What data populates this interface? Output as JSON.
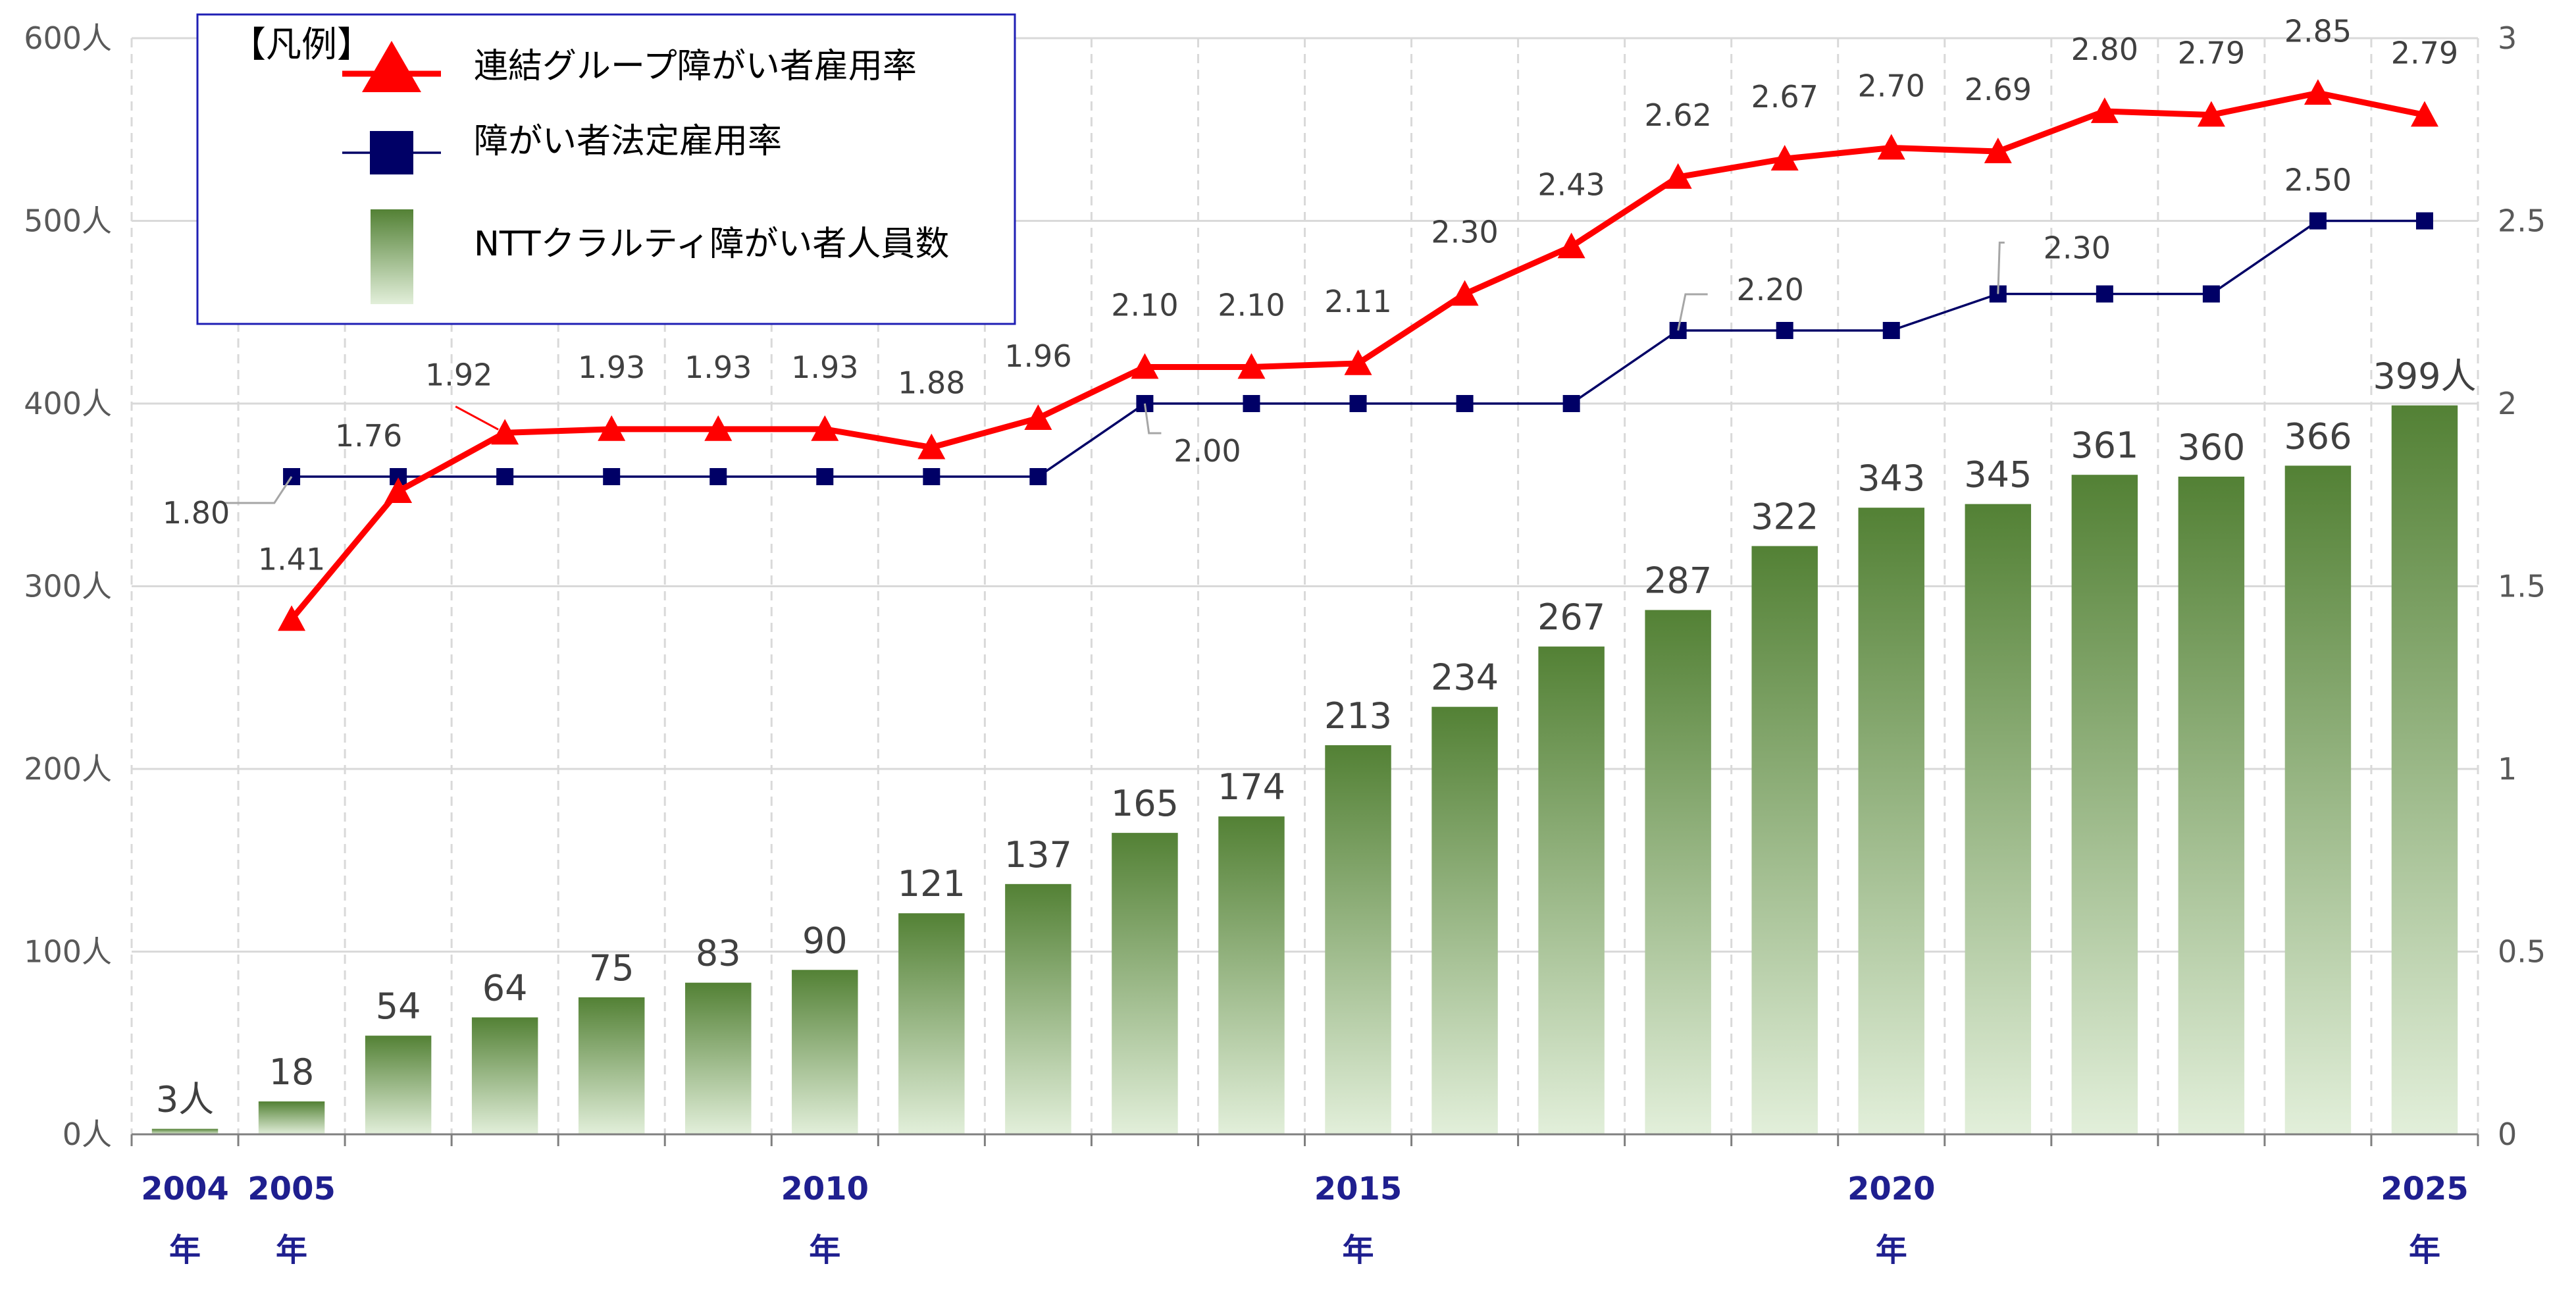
{
  "chart_data": {
    "type": "bar+line",
    "categories": [
      2004,
      2005,
      2006,
      2007,
      2008,
      2009,
      2010,
      2011,
      2012,
      2013,
      2014,
      2015,
      2016,
      2017,
      2018,
      2019,
      2020,
      2021,
      2022,
      2023,
      2024,
      2025
    ],
    "x_tick_labels": [
      {
        "year": 2004,
        "label": "2004",
        "sub": "年"
      },
      {
        "year": 2005,
        "label": "2005",
        "sub": "年"
      },
      {
        "year": 2010,
        "label": "2010",
        "sub": "年"
      },
      {
        "year": 2015,
        "label": "2015",
        "sub": "年"
      },
      {
        "year": 2020,
        "label": "2020",
        "sub": "年"
      },
      {
        "year": 2025,
        "label": "2025",
        "sub": "年"
      }
    ],
    "bars": {
      "name": "NTTクラルティ障がい者人員数",
      "values": [
        3,
        18,
        54,
        64,
        75,
        83,
        90,
        121,
        137,
        165,
        174,
        213,
        234,
        267,
        287,
        322,
        343,
        345,
        361,
        360,
        366,
        399
      ],
      "labels": [
        "3人",
        "18",
        "54",
        "64",
        "75",
        "83",
        "90",
        "121",
        "137",
        "165",
        "174",
        "213",
        "234",
        "267",
        "287",
        "322",
        "343",
        "345",
        "361",
        "360",
        "366",
        "399人"
      ],
      "color_top": "#538135",
      "color_bottom": "#e2efda"
    },
    "series": [
      {
        "name": "連結グループ障がい者雇用率",
        "x": [
          2005,
          2006,
          2007,
          2008,
          2009,
          2010,
          2011,
          2012,
          2013,
          2014,
          2015,
          2016,
          2017,
          2018,
          2019,
          2020,
          2021,
          2022,
          2023,
          2024,
          2025
        ],
        "values": [
          1.41,
          1.76,
          1.92,
          1.93,
          1.93,
          1.93,
          1.88,
          1.96,
          2.1,
          2.1,
          2.11,
          2.3,
          2.43,
          2.62,
          2.67,
          2.7,
          2.69,
          2.8,
          2.79,
          2.85,
          2.79
        ],
        "labels": [
          "1.41",
          "1.76",
          "1.92",
          "1.93",
          "1.93",
          "1.93",
          "1.88",
          "1.96",
          "2.10",
          "2.10",
          "2.11",
          "2.30",
          "2.43",
          "2.62",
          "2.67",
          "2.70",
          "2.69",
          "2.80",
          "2.79",
          "2.85",
          "2.79"
        ],
        "color": "#ff0000",
        "marker": "triangle"
      },
      {
        "name": "障がい者法定雇用率",
        "x": [
          2005,
          2006,
          2007,
          2008,
          2009,
          2010,
          2011,
          2012,
          2013,
          2014,
          2015,
          2016,
          2017,
          2018,
          2019,
          2020,
          2021,
          2022,
          2023,
          2024,
          2025
        ],
        "values": [
          1.8,
          1.8,
          1.8,
          1.8,
          1.8,
          1.8,
          1.8,
          1.8,
          2.0,
          2.0,
          2.0,
          2.0,
          2.0,
          2.2,
          2.2,
          2.2,
          2.3,
          2.3,
          2.3,
          2.5,
          2.5
        ],
        "annotations": [
          {
            "x": 2005,
            "label": "1.80"
          },
          {
            "x": 2013,
            "label": "2.00"
          },
          {
            "x": 2018,
            "label": "2.20"
          },
          {
            "x": 2021,
            "label": "2.30"
          },
          {
            "x": 2024,
            "label": "2.50"
          }
        ],
        "color": "#000066",
        "marker": "square"
      }
    ],
    "y_left": {
      "min": 0,
      "max": 600,
      "ticks": [
        0,
        100,
        200,
        300,
        400,
        500,
        600
      ],
      "tick_labels": [
        "0人",
        "100人",
        "200人",
        "300人",
        "400人",
        "500人",
        "600人"
      ]
    },
    "y_right": {
      "min": 0,
      "max": 3,
      "ticks": [
        0,
        0.5,
        1,
        1.5,
        2,
        2.5,
        3
      ],
      "tick_labels": [
        "0",
        "0.5",
        "1",
        "1.5",
        "2",
        "2.5",
        "3"
      ]
    },
    "legend": {
      "title": "【凡例】",
      "items": [
        "連結グループ障がい者雇用率",
        "障がい者法定雇用率",
        "NTTクラルティ障がい者人員数"
      ]
    },
    "colors": {
      "grid": "#d9d9d9",
      "axis_label": "#1f1f8f",
      "legend_border": "#1f1fb4"
    }
  }
}
